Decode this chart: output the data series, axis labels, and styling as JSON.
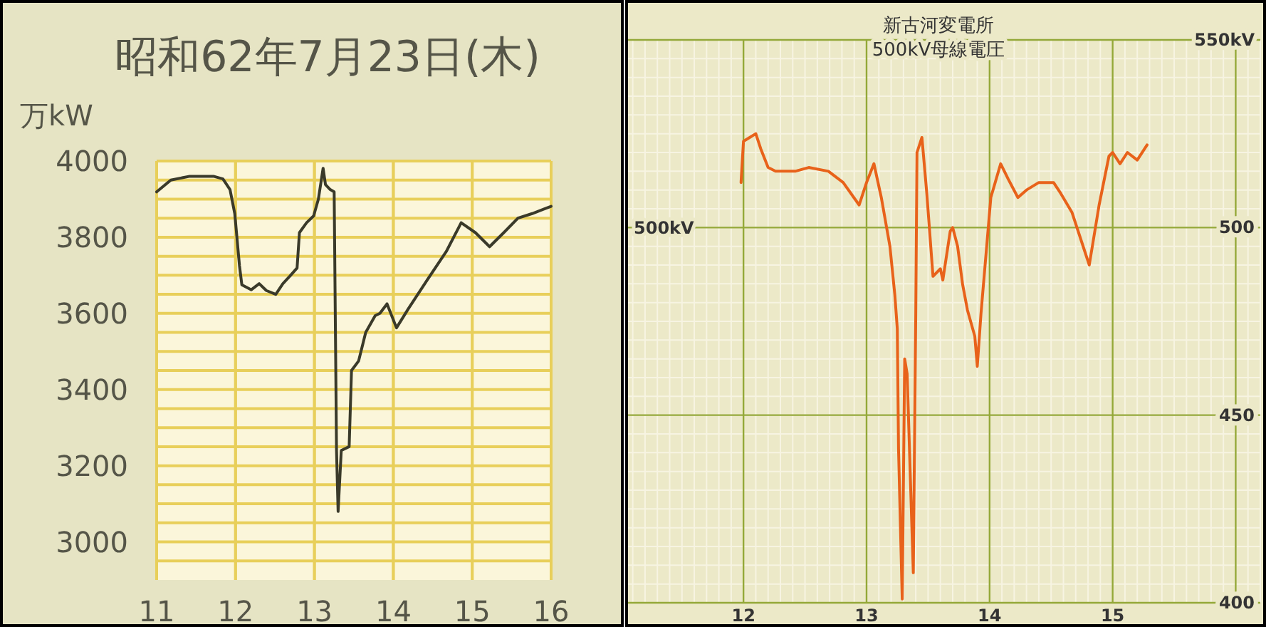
{
  "chart_data": [
    {
      "type": "line",
      "title": "昭和62年7月23日(木)",
      "ylabel": "万kW",
      "xlim": [
        11,
        16
      ],
      "xticks": [
        11,
        12,
        13,
        14,
        15,
        16
      ],
      "ylim": [
        2900,
        4000
      ],
      "yticks": [
        {
          "value": 2950,
          "label": null
        },
        3000,
        {
          "value": 3050,
          "label": null
        },
        {
          "value": 3100,
          "label": null
        },
        {
          "value": 3150,
          "label": null
        },
        3200,
        {
          "value": 3250,
          "label": null
        },
        {
          "value": 3300,
          "label": null
        },
        {
          "value": 3350,
          "label": null
        },
        3400,
        {
          "value": 3450,
          "label": null
        },
        {
          "value": 3500,
          "label": null
        },
        {
          "value": 3550,
          "label": null
        },
        3600,
        {
          "value": 3650,
          "label": null
        },
        {
          "value": 3700,
          "label": null
        },
        {
          "value": 3750,
          "label": null
        },
        3800,
        {
          "value": 3850,
          "label": null
        },
        {
          "value": 3900,
          "label": null
        },
        {
          "value": 3950,
          "label": null
        },
        4000
      ],
      "grid": true,
      "series": [
        {
          "color": "#3a3a2a",
          "x": [
            11.0,
            11.18,
            11.42,
            11.72,
            11.84,
            11.93,
            11.99,
            12.05,
            12.08,
            12.2,
            12.3,
            12.39,
            12.51,
            12.6,
            12.69,
            12.78,
            12.81,
            12.9,
            12.99,
            13.05,
            13.11,
            13.14,
            13.2,
            13.25,
            13.28,
            13.3,
            13.34,
            13.44,
            13.47,
            13.56,
            13.65,
            13.77,
            13.83,
            13.92,
            14.04,
            14.19,
            14.43,
            14.67,
            14.86,
            15.04,
            15.22,
            15.4,
            15.58,
            15.76,
            16.0
          ],
          "values": [
            3919,
            3950,
            3960,
            3960,
            3953,
            3925,
            3862,
            3725,
            3675,
            3662,
            3678,
            3660,
            3650,
            3678,
            3698,
            3719,
            3812,
            3838,
            3856,
            3900,
            3981,
            3938,
            3925,
            3919,
            3240,
            3080,
            3240,
            3250,
            3450,
            3475,
            3550,
            3594,
            3600,
            3625,
            3562,
            3612,
            3688,
            3762,
            3838,
            3812,
            3775,
            3812,
            3850,
            3862,
            3881
          ]
        }
      ]
    },
    {
      "type": "line",
      "title": "新古河変電所",
      "subtitle": "500kV母線電圧",
      "xlim": [
        11.05,
        16.2
      ],
      "xticks": [
        12,
        13,
        14,
        15,
        {
          "value": 16,
          "label": null
        }
      ],
      "annotations": [
        "500kV"
      ],
      "y2lim": [
        400,
        550
      ],
      "y2ticks": [
        400,
        450,
        500,
        {
          "value": 550,
          "label": "550kV"
        }
      ],
      "grid": true,
      "series": [
        {
          "color": "#e8621a",
          "axis": "y2",
          "x": [
            11.98,
            12.0,
            12.05,
            12.1,
            12.14,
            12.2,
            12.26,
            12.42,
            12.53,
            12.69,
            12.81,
            12.94,
            13.0,
            13.06,
            13.12,
            13.19,
            13.23,
            13.25,
            13.26,
            13.29,
            13.31,
            13.33,
            13.38,
            13.4,
            13.41,
            13.45,
            13.49,
            13.54,
            13.6,
            13.62,
            13.68,
            13.7,
            13.74,
            13.78,
            13.82,
            13.88,
            13.9,
            13.93,
            14.01,
            14.09,
            14.15,
            14.23,
            14.3,
            14.4,
            14.52,
            14.58,
            14.67,
            14.81,
            14.89,
            14.97,
            15.0,
            15.06,
            15.12,
            15.2,
            15.28
          ],
          "values": [
            512,
            523,
            524,
            525,
            521,
            516,
            515,
            515,
            516,
            515,
            512,
            506,
            512,
            517,
            508,
            495,
            482,
            473,
            441,
            401,
            465,
            461,
            408,
            477,
            520,
            524,
            509,
            487,
            489,
            486,
            499,
            500,
            495,
            485,
            478,
            471,
            463,
            477,
            508,
            517,
            513,
            508,
            510,
            512,
            512,
            509,
            504,
            490,
            506,
            519,
            520,
            517,
            520,
            518,
            522
          ]
        }
      ]
    }
  ]
}
